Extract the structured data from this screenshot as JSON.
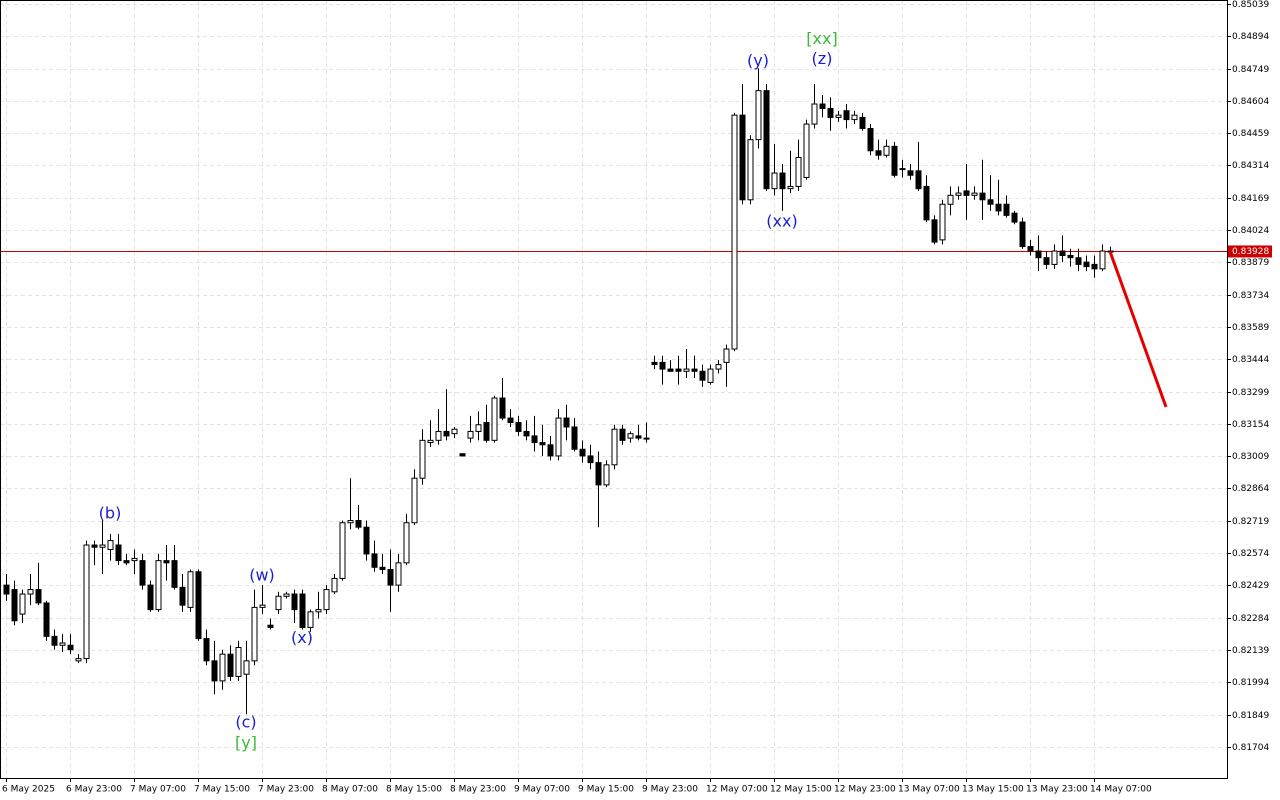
{
  "chart_data": {
    "type": "candlestick",
    "categories": [
      "6 May 2025",
      null,
      null,
      null,
      null,
      null,
      null,
      null,
      "6 May 23:00",
      null,
      null,
      null,
      null,
      null,
      null,
      null,
      "7 May 07:00",
      null,
      null,
      null,
      null,
      null,
      null,
      null,
      "7 May 15:00",
      null,
      null,
      null,
      null,
      null,
      null,
      null,
      "7 May 23:00",
      null,
      null,
      null,
      null,
      null,
      null,
      null,
      "8 May 07:00",
      null,
      null,
      null,
      null,
      null,
      null,
      null,
      "8 May 15:00",
      null,
      null,
      null,
      null,
      null,
      null,
      null,
      "8 May 23:00",
      null,
      null,
      null,
      null,
      null,
      null,
      null,
      "9 May 07:00",
      null,
      null,
      null,
      null,
      null,
      null,
      null,
      "9 May 15:00",
      null,
      null,
      null,
      null,
      null,
      null,
      null,
      "9 May 23:00",
      null,
      null,
      null,
      null,
      null,
      null,
      null,
      "12 May 07:00",
      null,
      null,
      null,
      null,
      null,
      null,
      null,
      "12 May 15:00",
      null,
      null,
      null,
      null,
      null,
      null,
      null,
      "12 May 23:00",
      null,
      null,
      null,
      null,
      null,
      null,
      null,
      "13 May 07:00",
      null,
      null,
      null,
      null,
      null,
      null,
      null,
      "13 May 15:00",
      null,
      null,
      null,
      null,
      null,
      null,
      null,
      "13 May 23:00",
      null,
      null,
      null,
      null,
      null,
      null,
      null,
      "14 May 07:00",
      null,
      null
    ],
    "open": [
      0.8243,
      0.8241,
      0.823,
      0.8239,
      0.8241,
      0.8235,
      0.822,
      0.8216,
      0.8216,
      0.8209,
      0.821,
      0.8261,
      0.826,
      0.8259,
      0.8261,
      0.8254,
      0.8254,
      0.8254,
      0.8243,
      0.8232,
      0.8254,
      0.8254,
      0.8242,
      0.8233,
      0.8249,
      0.8219,
      0.8209,
      0.82,
      0.8212,
      0.8202,
      0.8203,
      0.8209,
      0.8233,
      0.8225,
      0.8232,
      0.8238,
      0.8239,
      0.8239,
      0.8224,
      0.8231,
      0.8232,
      0.824,
      0.8246,
      0.8271,
      0.8272,
      0.8269,
      0.8257,
      0.8251,
      0.825,
      0.8243,
      0.8253,
      0.8271,
      0.8291,
      0.8307,
      0.8308,
      0.8312,
      0.8311,
      0.8302,
      0.8309,
      0.8312,
      0.8316,
      0.8308,
      0.8327,
      0.8318,
      0.8316,
      0.8312,
      0.831,
      0.8307,
      0.8306,
      0.8301,
      0.8318,
      0.8314,
      0.8304,
      0.8301,
      0.8298,
      0.8288,
      0.8297,
      0.8313,
      0.8309,
      0.831,
      0.8309,
      0.8343,
      0.8343,
      0.834,
      0.834,
      0.8339,
      0.834,
      0.8339,
      0.8334,
      0.834,
      0.8343,
      0.8349,
      0.8454,
      0.8416,
      0.8443,
      0.8465,
      0.8421,
      0.8428,
      0.8421,
      0.8422,
      0.8426,
      0.845,
      0.8459,
      0.8457,
      0.8453,
      0.8456,
      0.8452,
      0.8453,
      0.8448,
      0.8438,
      0.8436,
      0.844,
      0.843,
      0.8429,
      0.8429,
      0.8422,
      0.8407,
      0.8398,
      0.8414,
      0.8418,
      0.842,
      0.8418,
      0.8419,
      0.8416,
      0.8414,
      0.8414,
      0.841,
      0.8406,
      0.8395,
      0.8393,
      0.839,
      0.8387,
      0.8393,
      0.8391,
      0.839,
      0.8388,
      0.8387,
      0.8385,
      0.8393
    ],
    "high": [
      0.8248,
      0.8245,
      0.8241,
      0.8248,
      0.8253,
      0.8236,
      0.8223,
      0.8221,
      0.8221,
      0.8212,
      0.8263,
      0.8263,
      0.8272,
      0.8266,
      0.8266,
      0.8257,
      0.8259,
      0.8257,
      0.8245,
      0.8257,
      0.8261,
      0.8261,
      0.8248,
      0.825,
      0.825,
      0.8223,
      0.8218,
      0.8214,
      0.8216,
      0.8218,
      0.8218,
      0.8241,
      0.8243,
      0.8228,
      0.824,
      0.824,
      0.8241,
      0.8241,
      0.8232,
      0.824,
      0.8243,
      0.8248,
      0.8272,
      0.8291,
      0.8279,
      0.8272,
      0.8263,
      0.8257,
      0.8259,
      0.8257,
      0.8275,
      0.8295,
      0.8313,
      0.8317,
      0.8322,
      0.8331,
      0.8314,
      0.8302,
      0.8319,
      0.8321,
      0.8324,
      0.8328,
      0.8336,
      0.8322,
      0.8319,
      0.8317,
      0.8319,
      0.8315,
      0.831,
      0.8322,
      0.8324,
      0.8318,
      0.8308,
      0.8306,
      0.8303,
      0.8299,
      0.8315,
      0.8315,
      0.8312,
      0.8315,
      0.8316,
      0.8346,
      0.8346,
      0.8344,
      0.8346,
      0.8349,
      0.8346,
      0.8342,
      0.8342,
      0.8344,
      0.8351,
      0.8455,
      0.8468,
      0.8445,
      0.8475,
      0.8468,
      0.8441,
      0.8432,
      0.8438,
      0.8443,
      0.8452,
      0.8468,
      0.8463,
      0.8462,
      0.8456,
      0.8459,
      0.8456,
      0.8455,
      0.845,
      0.8443,
      0.8443,
      0.8442,
      0.8434,
      0.8432,
      0.8442,
      0.8427,
      0.8409,
      0.8416,
      0.8422,
      0.8422,
      0.8432,
      0.8422,
      0.8434,
      0.8427,
      0.8425,
      0.8418,
      0.8411,
      0.8408,
      0.8398,
      0.84,
      0.8393,
      0.8396,
      0.84,
      0.8394,
      0.8394,
      0.8391,
      0.8391,
      0.8396,
      0.8395
    ],
    "low": [
      0.8236,
      0.8225,
      0.8226,
      0.8234,
      0.8234,
      0.8218,
      0.8214,
      0.8213,
      0.8212,
      0.8208,
      0.8208,
      0.8252,
      0.8248,
      0.8254,
      0.8252,
      0.8252,
      0.8248,
      0.8241,
      0.8231,
      0.8231,
      0.8245,
      0.8241,
      0.8231,
      0.8231,
      0.8218,
      0.8207,
      0.8194,
      0.8196,
      0.82,
      0.82,
      0.8185,
      0.8207,
      0.823,
      0.8223,
      0.823,
      0.8237,
      0.8226,
      0.8223,
      0.8222,
      0.8228,
      0.823,
      0.8239,
      0.8245,
      0.8268,
      0.8268,
      0.8254,
      0.8249,
      0.8248,
      0.8231,
      0.824,
      0.8252,
      0.827,
      0.8288,
      0.8305,
      0.8306,
      0.8308,
      0.8309,
      0.8301,
      0.8307,
      0.8308,
      0.8307,
      0.8307,
      0.8317,
      0.8314,
      0.831,
      0.8308,
      0.8303,
      0.8301,
      0.8299,
      0.8299,
      0.8308,
      0.8303,
      0.8298,
      0.8295,
      0.8269,
      0.8287,
      0.8295,
      0.8306,
      0.8307,
      0.8308,
      0.8307,
      0.834,
      0.8333,
      0.8339,
      0.8333,
      0.8336,
      0.8336,
      0.8332,
      0.8333,
      0.8338,
      0.8332,
      0.8348,
      0.8414,
      0.8414,
      0.8439,
      0.842,
      0.8418,
      0.8411,
      0.8419,
      0.842,
      0.8425,
      0.8448,
      0.8453,
      0.8447,
      0.8451,
      0.8448,
      0.845,
      0.8447,
      0.8436,
      0.8434,
      0.8435,
      0.8426,
      0.8426,
      0.8425,
      0.842,
      0.8406,
      0.8396,
      0.8396,
      0.8409,
      0.8416,
      0.8407,
      0.8416,
      0.8407,
      0.8411,
      0.8409,
      0.8408,
      0.8405,
      0.8394,
      0.8391,
      0.8384,
      0.8385,
      0.8385,
      0.8388,
      0.8386,
      0.8384,
      0.8384,
      0.8381,
      0.8384,
      0.8392
    ],
    "close": [
      0.8239,
      0.8227,
      0.8239,
      0.8241,
      0.8235,
      0.822,
      0.8216,
      0.8217,
      0.8214,
      0.821,
      0.8261,
      0.826,
      0.8261,
      0.8263,
      0.8254,
      0.8253,
      0.8255,
      0.8243,
      0.8232,
      0.8254,
      0.8253,
      0.8242,
      0.8234,
      0.8249,
      0.8219,
      0.8209,
      0.82,
      0.8212,
      0.8202,
      0.8215,
      0.8209,
      0.8233,
      0.8234,
      0.8224,
      0.8238,
      0.8239,
      0.8232,
      0.8224,
      0.8231,
      0.8232,
      0.8241,
      0.8246,
      0.8271,
      0.8272,
      0.8269,
      0.8257,
      0.8251,
      0.825,
      0.8243,
      0.8253,
      0.8271,
      0.8291,
      0.8308,
      0.8308,
      0.8312,
      0.831,
      0.8313,
      0.8301,
      0.8312,
      0.8315,
      0.8308,
      0.8327,
      0.8318,
      0.8316,
      0.8312,
      0.831,
      0.8307,
      0.8306,
      0.8301,
      0.8318,
      0.8314,
      0.8304,
      0.8301,
      0.8298,
      0.8288,
      0.8297,
      0.8313,
      0.8308,
      0.8311,
      0.8309,
      0.8309,
      0.8342,
      0.834,
      0.8339,
      0.8339,
      0.834,
      0.8339,
      0.8335,
      0.834,
      0.8342,
      0.8349,
      0.8454,
      0.8416,
      0.8443,
      0.8465,
      0.8421,
      0.8428,
      0.8421,
      0.8422,
      0.8435,
      0.845,
      0.8459,
      0.8457,
      0.8453,
      0.8454,
      0.8452,
      0.8454,
      0.8448,
      0.8438,
      0.8436,
      0.844,
      0.8427,
      0.843,
      0.8427,
      0.8421,
      0.8407,
      0.8397,
      0.8414,
      0.8418,
      0.8419,
      0.8418,
      0.8419,
      0.8416,
      0.8414,
      0.8411,
      0.8409,
      0.8406,
      0.8395,
      0.8393,
      0.839,
      0.8387,
      0.8393,
      0.8391,
      0.839,
      0.8387,
      0.8386,
      0.8385,
      0.8393,
      0.8393
    ],
    "ylim": [
      0.81564,
      0.85057
    ],
    "yticks": [
      0.85039,
      0.84894,
      0.84749,
      0.84604,
      0.84459,
      0.84314,
      0.84169,
      0.84024,
      0.83879,
      0.83734,
      0.83589,
      0.83444,
      0.83299,
      0.83154,
      0.83009,
      0.82864,
      0.82719,
      0.82574,
      0.82429,
      0.82284,
      0.82139,
      0.81994,
      0.81849,
      0.81704
    ],
    "grid": true,
    "current_price": 0.83928,
    "current_price_color": "#cc0000",
    "forecast_end": 0.8323,
    "forecast_color": "#e60000",
    "annotations": [
      {
        "text": "(b)",
        "candle": 13,
        "price": 0.8275,
        "color": "#1c1cd0"
      },
      {
        "text": "(c)",
        "candle": 30,
        "price": 0.8181,
        "color": "#1c1cd0"
      },
      {
        "text": "[y]",
        "candle": 30,
        "price": 0.8172,
        "color": "#3cba3c"
      },
      {
        "text": "(w)",
        "candle": 32,
        "price": 0.8247,
        "color": "#1c1cd0"
      },
      {
        "text": "(x)",
        "candle": 37,
        "price": 0.8219,
        "color": "#1c1cd0"
      },
      {
        "text": "(y)",
        "candle": 94,
        "price": 0.8478,
        "color": "#1c1cd0"
      },
      {
        "text": "(xx)",
        "candle": 97,
        "price": 0.8406,
        "color": "#1c1cd0"
      },
      {
        "text": "[xx]",
        "candle": 102,
        "price": 0.8488,
        "color": "#3cba3c"
      },
      {
        "text": "(z)",
        "candle": 102,
        "price": 0.8479,
        "color": "#1c1cd0"
      }
    ]
  }
}
